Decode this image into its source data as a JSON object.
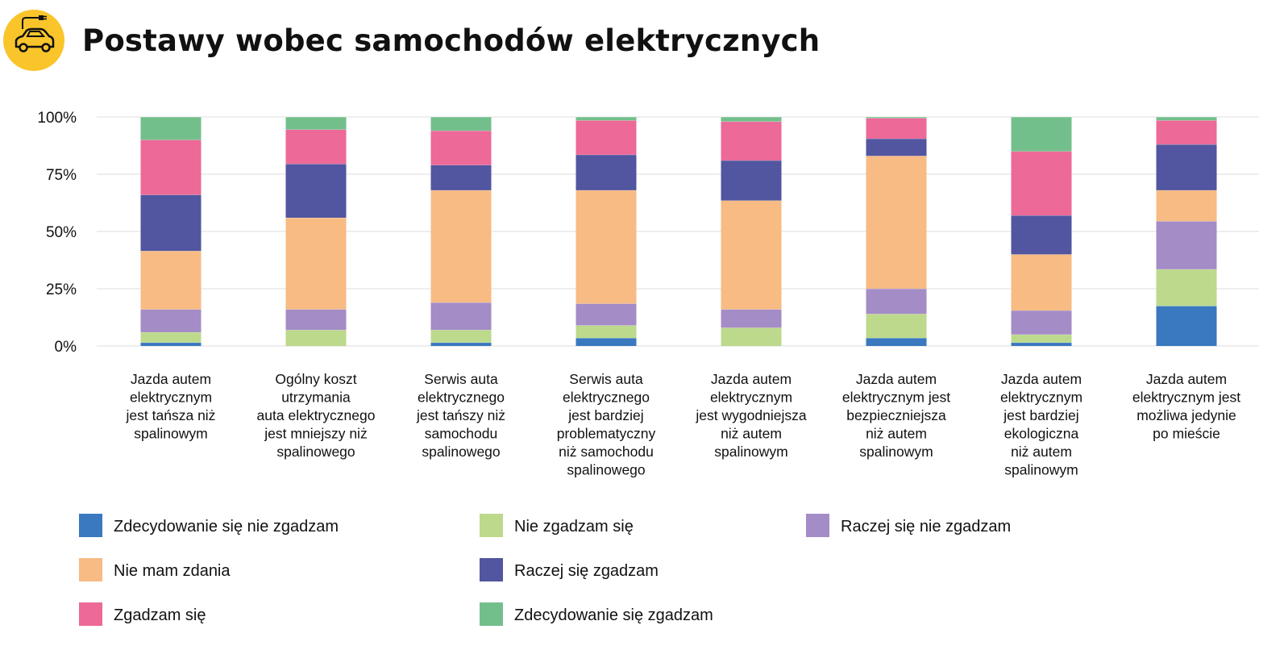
{
  "header": {
    "title": "Postawy wobec samochodów elektrycznych",
    "icon": "electric-car-icon"
  },
  "chart_data": {
    "type": "bar",
    "stacked": true,
    "title": "Postawy wobec samochodów elektrycznych",
    "ylim": [
      0,
      100
    ],
    "yticks": [
      "0%",
      "25%",
      "50%",
      "75%",
      "100%"
    ],
    "grid": true,
    "legend_position": "bottom",
    "categories": [
      [
        "Jazda autem",
        "elektrycznym",
        "jest tańsza niż",
        "spalinowym"
      ],
      [
        "Ogólny koszt",
        "utrzymania",
        "auta elektrycznego",
        "jest mniejszy niż",
        "spalinowego"
      ],
      [
        "Serwis auta",
        "elektrycznego",
        "jest tańszy niż",
        "samochodu",
        "spalinowego"
      ],
      [
        "Serwis auta",
        "elektrycznego",
        "jest bardziej",
        "problematyczny",
        "niż samochodu",
        "spalinowego"
      ],
      [
        "Jazda autem",
        "elektrycznym",
        "jest wygodniejsza",
        "niż autem",
        "spalinowym"
      ],
      [
        "Jazda autem",
        "elektrycznym jest",
        "bezpieczniejsza",
        "niż autem",
        "spalinowym"
      ],
      [
        "Jazda autem",
        "elektrycznym",
        "jest bardziej",
        "ekologiczna",
        "niż autem",
        "spalinowym"
      ],
      [
        "Jazda autem",
        "elektrycznym jest",
        "możliwa jedynie",
        "po mieście"
      ]
    ],
    "series": [
      {
        "name": "Zdecydowanie się nie zgadzam",
        "color": "#3a78bf",
        "values": [
          1.5,
          0,
          1.5,
          3.5,
          0,
          3.5,
          1.5,
          17.5
        ]
      },
      {
        "name": "Nie zgadzam się",
        "color": "#bcd98c",
        "values": [
          4.5,
          7,
          5.5,
          5.5,
          8,
          10.5,
          3.5,
          16
        ]
      },
      {
        "name": "Raczej się nie zgadzam",
        "color": "#a48cc6",
        "values": [
          10,
          9,
          12,
          9.5,
          8,
          11,
          10.5,
          21
        ]
      },
      {
        "name": "Nie mam zdania",
        "color": "#f7bb83",
        "values": [
          25.5,
          40,
          49,
          49.5,
          47.5,
          58,
          24.5,
          13.5
        ]
      },
      {
        "name": "Raczej się zgadzam",
        "color": "#52559f",
        "values": [
          24.5,
          23.5,
          11,
          15.5,
          17.5,
          7.5,
          17,
          20
        ]
      },
      {
        "name": "Zgadzam się",
        "color": "#ec6998",
        "values": [
          24,
          15,
          15,
          15,
          17,
          9,
          28,
          10.5
        ]
      },
      {
        "name": "Zdecydowanie się zgadzam",
        "color": "#73bf8c",
        "values": [
          10,
          5.5,
          6,
          1.5,
          2,
          0.5,
          15,
          1.5
        ]
      }
    ],
    "legend_order": [
      0,
      3,
      5,
      1,
      4,
      6,
      2
    ]
  }
}
